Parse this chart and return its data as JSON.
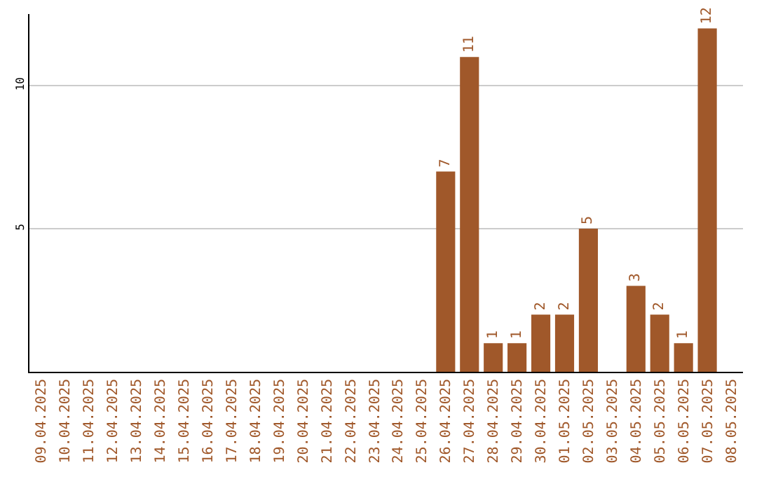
{
  "chart_data": {
    "type": "bar",
    "categories": [
      "09.04.2025",
      "10.04.2025",
      "11.04.2025",
      "12.04.2025",
      "13.04.2025",
      "14.04.2025",
      "15.04.2025",
      "16.04.2025",
      "17.04.2025",
      "18.04.2025",
      "19.04.2025",
      "20.04.2025",
      "21.04.2025",
      "22.04.2025",
      "23.04.2025",
      "24.04.2025",
      "25.04.2025",
      "26.04.2025",
      "27.04.2025",
      "28.04.2025",
      "29.04.2025",
      "30.04.2025",
      "01.05.2025",
      "02.05.2025",
      "03.05.2025",
      "04.05.2025",
      "05.05.2025",
      "06.05.2025",
      "07.05.2025",
      "08.05.2025"
    ],
    "values": [
      0,
      0,
      0,
      0,
      0,
      0,
      0,
      0,
      0,
      0,
      0,
      0,
      0,
      0,
      0,
      0,
      0,
      7,
      11,
      1,
      1,
      2,
      2,
      5,
      0,
      3,
      2,
      1,
      12,
      0
    ],
    "value_labels": [
      null,
      null,
      null,
      null,
      null,
      null,
      null,
      null,
      null,
      null,
      null,
      null,
      null,
      null,
      null,
      null,
      null,
      "7",
      "11",
      "1",
      "1",
      "2",
      "2",
      "5",
      null,
      "3",
      "2",
      "1",
      "12",
      null
    ],
    "color": "#a0582a",
    "ylim": [
      0,
      12.5
    ],
    "yticks": [
      5,
      10
    ],
    "grid": "y",
    "legend": false
  }
}
